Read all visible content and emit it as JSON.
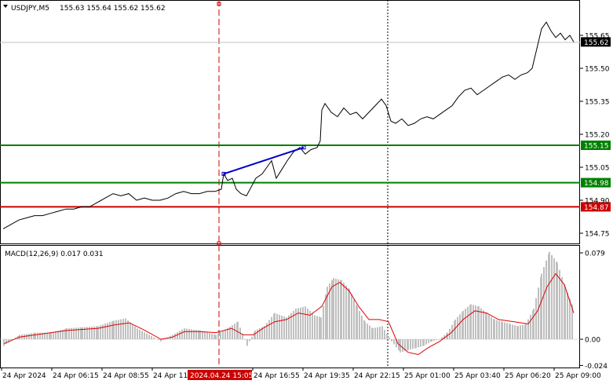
{
  "header": {
    "symbol": "USDJPY,M5",
    "ohlc": "155.63 155.64 155.62 155.62"
  },
  "macd_header": {
    "label": "MACD(12,26,9) 0.017 0.031"
  },
  "colors": {
    "price_line": "#000000",
    "level_green": "#008000",
    "level_red": "#cc0000",
    "trend_blue": "#0000cc",
    "macd_hist": "#c0c0c0",
    "macd_signal": "#dd0000",
    "vline_red": "#cc0000"
  },
  "price_axis": {
    "ticks": [
      "155.65",
      "155.50",
      "155.35",
      "155.20",
      "155.05",
      "154.90",
      "154.75"
    ],
    "current_price": "155.62"
  },
  "levels": [
    {
      "name": "upper-green-level",
      "value": "155.15",
      "color": "#008000"
    },
    {
      "name": "middle-green-level",
      "value": "154.98",
      "color": "#008000"
    },
    {
      "name": "red-level",
      "value": "154.87",
      "color": "#cc0000"
    }
  ],
  "macd_axis": {
    "ticks": [
      "0.079",
      "0.00",
      "-0.024"
    ]
  },
  "time_axis": {
    "labels": [
      "24 Apr 2024",
      "24 Apr 06:15",
      "24 Apr 08:55",
      "24 Apr 11:",
      "24 Apr 16:55",
      "24 Apr 19:35",
      "24 Apr 22:15",
      "25 Apr 01:00",
      "25 Apr 03:40",
      "25 Apr 06:20",
      "25 Apr 09:00"
    ],
    "highlight": "2024.04.24 15:05"
  },
  "chart_data": {
    "type": "line",
    "price_series": [
      {
        "t": 0,
        "v": 154.77
      },
      {
        "t": 10,
        "v": 154.79
      },
      {
        "t": 20,
        "v": 154.81
      },
      {
        "t": 30,
        "v": 154.82
      },
      {
        "t": 40,
        "v": 154.83
      },
      {
        "t": 50,
        "v": 154.83
      },
      {
        "t": 60,
        "v": 154.84
      },
      {
        "t": 70,
        "v": 154.85
      },
      {
        "t": 80,
        "v": 154.86
      },
      {
        "t": 90,
        "v": 154.86
      },
      {
        "t": 100,
        "v": 154.87
      },
      {
        "t": 110,
        "v": 154.87
      },
      {
        "t": 120,
        "v": 154.89
      },
      {
        "t": 130,
        "v": 154.91
      },
      {
        "t": 140,
        "v": 154.93
      },
      {
        "t": 150,
        "v": 154.92
      },
      {
        "t": 160,
        "v": 154.93
      },
      {
        "t": 170,
        "v": 154.9
      },
      {
        "t": 180,
        "v": 154.91
      },
      {
        "t": 190,
        "v": 154.9
      },
      {
        "t": 200,
        "v": 154.9
      },
      {
        "t": 210,
        "v": 154.91
      },
      {
        "t": 220,
        "v": 154.93
      },
      {
        "t": 230,
        "v": 154.94
      },
      {
        "t": 240,
        "v": 154.93
      },
      {
        "t": 250,
        "v": 154.93
      },
      {
        "t": 260,
        "v": 154.94
      },
      {
        "t": 270,
        "v": 154.94
      },
      {
        "t": 278,
        "v": 154.95
      },
      {
        "t": 281,
        "v": 155.02
      },
      {
        "t": 286,
        "v": 154.99
      },
      {
        "t": 292,
        "v": 155.0
      },
      {
        "t": 297,
        "v": 154.95
      },
      {
        "t": 303,
        "v": 154.93
      },
      {
        "t": 310,
        "v": 154.92
      },
      {
        "t": 316,
        "v": 154.96
      },
      {
        "t": 322,
        "v": 155.0
      },
      {
        "t": 330,
        "v": 155.02
      },
      {
        "t": 336,
        "v": 155.05
      },
      {
        "t": 342,
        "v": 155.08
      },
      {
        "t": 348,
        "v": 155.0
      },
      {
        "t": 355,
        "v": 155.04
      },
      {
        "t": 362,
        "v": 155.08
      },
      {
        "t": 370,
        "v": 155.12
      },
      {
        "t": 378,
        "v": 155.14
      },
      {
        "t": 385,
        "v": 155.11
      },
      {
        "t": 392,
        "v": 155.13
      },
      {
        "t": 400,
        "v": 155.14
      },
      {
        "t": 404,
        "v": 155.17
      },
      {
        "t": 406,
        "v": 155.31
      },
      {
        "t": 410,
        "v": 155.34
      },
      {
        "t": 418,
        "v": 155.3
      },
      {
        "t": 426,
        "v": 155.28
      },
      {
        "t": 434,
        "v": 155.32
      },
      {
        "t": 442,
        "v": 155.29
      },
      {
        "t": 450,
        "v": 155.3
      },
      {
        "t": 458,
        "v": 155.27
      },
      {
        "t": 466,
        "v": 155.3
      },
      {
        "t": 474,
        "v": 155.33
      },
      {
        "t": 482,
        "v": 155.36
      },
      {
        "t": 488,
        "v": 155.33
      },
      {
        "t": 494,
        "v": 155.26
      },
      {
        "t": 500,
        "v": 155.25
      },
      {
        "t": 508,
        "v": 155.27
      },
      {
        "t": 516,
        "v": 155.24
      },
      {
        "t": 524,
        "v": 155.25
      },
      {
        "t": 532,
        "v": 155.27
      },
      {
        "t": 540,
        "v": 155.28
      },
      {
        "t": 548,
        "v": 155.27
      },
      {
        "t": 556,
        "v": 155.29
      },
      {
        "t": 564,
        "v": 155.31
      },
      {
        "t": 572,
        "v": 155.33
      },
      {
        "t": 580,
        "v": 155.37
      },
      {
        "t": 588,
        "v": 155.4
      },
      {
        "t": 596,
        "v": 155.41
      },
      {
        "t": 604,
        "v": 155.38
      },
      {
        "t": 612,
        "v": 155.4
      },
      {
        "t": 620,
        "v": 155.42
      },
      {
        "t": 628,
        "v": 155.44
      },
      {
        "t": 636,
        "v": 155.46
      },
      {
        "t": 644,
        "v": 155.47
      },
      {
        "t": 652,
        "v": 155.45
      },
      {
        "t": 660,
        "v": 155.47
      },
      {
        "t": 668,
        "v": 155.48
      },
      {
        "t": 674,
        "v": 155.5
      },
      {
        "t": 680,
        "v": 155.59
      },
      {
        "t": 686,
        "v": 155.68
      },
      {
        "t": 692,
        "v": 155.71
      },
      {
        "t": 698,
        "v": 155.67
      },
      {
        "t": 704,
        "v": 155.64
      },
      {
        "t": 710,
        "v": 155.66
      },
      {
        "t": 716,
        "v": 155.63
      },
      {
        "t": 722,
        "v": 155.65
      },
      {
        "t": 727,
        "v": 155.62
      }
    ],
    "trend_line": [
      {
        "t": 281,
        "v": 155.02
      },
      {
        "t": 383,
        "v": 155.14
      }
    ],
    "macd_hist": [
      {
        "t": 0,
        "v": -0.006
      },
      {
        "t": 20,
        "v": 0.004
      },
      {
        "t": 40,
        "v": 0.006
      },
      {
        "t": 60,
        "v": 0.006
      },
      {
        "t": 80,
        "v": 0.01
      },
      {
        "t": 100,
        "v": 0.011
      },
      {
        "t": 120,
        "v": 0.012
      },
      {
        "t": 140,
        "v": 0.017
      },
      {
        "t": 155,
        "v": 0.019
      },
      {
        "t": 170,
        "v": 0.01
      },
      {
        "t": 185,
        "v": 0.004
      },
      {
        "t": 200,
        "v": -0.002
      },
      {
        "t": 215,
        "v": 0.004
      },
      {
        "t": 230,
        "v": 0.01
      },
      {
        "t": 250,
        "v": 0.008
      },
      {
        "t": 270,
        "v": 0.004
      },
      {
        "t": 285,
        "v": 0.01
      },
      {
        "t": 298,
        "v": 0.016
      },
      {
        "t": 310,
        "v": -0.006
      },
      {
        "t": 320,
        "v": 0.008
      },
      {
        "t": 332,
        "v": 0.012
      },
      {
        "t": 345,
        "v": 0.024
      },
      {
        "t": 360,
        "v": 0.02
      },
      {
        "t": 372,
        "v": 0.028
      },
      {
        "t": 384,
        "v": 0.03
      },
      {
        "t": 396,
        "v": 0.022
      },
      {
        "t": 404,
        "v": 0.02
      },
      {
        "t": 412,
        "v": 0.048
      },
      {
        "t": 420,
        "v": 0.056
      },
      {
        "t": 430,
        "v": 0.054
      },
      {
        "t": 440,
        "v": 0.046
      },
      {
        "t": 450,
        "v": 0.03
      },
      {
        "t": 460,
        "v": 0.016
      },
      {
        "t": 470,
        "v": 0.01
      },
      {
        "t": 482,
        "v": 0.012
      },
      {
        "t": 494,
        "v": -0.002
      },
      {
        "t": 505,
        "v": -0.012
      },
      {
        "t": 515,
        "v": -0.01
      },
      {
        "t": 525,
        "v": -0.008
      },
      {
        "t": 535,
        "v": -0.006
      },
      {
        "t": 545,
        "v": -0.002
      },
      {
        "t": 555,
        "v": 0.0
      },
      {
        "t": 565,
        "v": 0.006
      },
      {
        "t": 575,
        "v": 0.018
      },
      {
        "t": 585,
        "v": 0.026
      },
      {
        "t": 595,
        "v": 0.032
      },
      {
        "t": 605,
        "v": 0.03
      },
      {
        "t": 615,
        "v": 0.024
      },
      {
        "t": 625,
        "v": 0.018
      },
      {
        "t": 635,
        "v": 0.016
      },
      {
        "t": 645,
        "v": 0.014
      },
      {
        "t": 655,
        "v": 0.012
      },
      {
        "t": 665,
        "v": 0.014
      },
      {
        "t": 675,
        "v": 0.028
      },
      {
        "t": 685,
        "v": 0.06
      },
      {
        "t": 695,
        "v": 0.08
      },
      {
        "t": 705,
        "v": 0.07
      },
      {
        "t": 715,
        "v": 0.048
      },
      {
        "t": 725,
        "v": 0.03
      }
    ],
    "macd_signal": [
      {
        "t": 0,
        "v": -0.004
      },
      {
        "t": 20,
        "v": 0.002
      },
      {
        "t": 40,
        "v": 0.004
      },
      {
        "t": 60,
        "v": 0.006
      },
      {
        "t": 80,
        "v": 0.008
      },
      {
        "t": 100,
        "v": 0.009
      },
      {
        "t": 120,
        "v": 0.01
      },
      {
        "t": 140,
        "v": 0.013
      },
      {
        "t": 160,
        "v": 0.015
      },
      {
        "t": 180,
        "v": 0.008
      },
      {
        "t": 200,
        "v": 0.0
      },
      {
        "t": 215,
        "v": 0.002
      },
      {
        "t": 230,
        "v": 0.007
      },
      {
        "t": 250,
        "v": 0.007
      },
      {
        "t": 270,
        "v": 0.006
      },
      {
        "t": 290,
        "v": 0.01
      },
      {
        "t": 305,
        "v": 0.004
      },
      {
        "t": 318,
        "v": 0.004
      },
      {
        "t": 330,
        "v": 0.01
      },
      {
        "t": 345,
        "v": 0.016
      },
      {
        "t": 360,
        "v": 0.018
      },
      {
        "t": 375,
        "v": 0.024
      },
      {
        "t": 390,
        "v": 0.022
      },
      {
        "t": 405,
        "v": 0.03
      },
      {
        "t": 418,
        "v": 0.048
      },
      {
        "t": 428,
        "v": 0.052
      },
      {
        "t": 440,
        "v": 0.044
      },
      {
        "t": 452,
        "v": 0.03
      },
      {
        "t": 465,
        "v": 0.018
      },
      {
        "t": 478,
        "v": 0.018
      },
      {
        "t": 490,
        "v": 0.016
      },
      {
        "t": 502,
        "v": -0.004
      },
      {
        "t": 515,
        "v": -0.012
      },
      {
        "t": 528,
        "v": -0.014
      },
      {
        "t": 540,
        "v": -0.008
      },
      {
        "t": 555,
        "v": -0.002
      },
      {
        "t": 570,
        "v": 0.006
      },
      {
        "t": 585,
        "v": 0.018
      },
      {
        "t": 600,
        "v": 0.026
      },
      {
        "t": 615,
        "v": 0.024
      },
      {
        "t": 630,
        "v": 0.018
      },
      {
        "t": 650,
        "v": 0.016
      },
      {
        "t": 668,
        "v": 0.014
      },
      {
        "t": 680,
        "v": 0.026
      },
      {
        "t": 692,
        "v": 0.048
      },
      {
        "t": 703,
        "v": 0.06
      },
      {
        "t": 714,
        "v": 0.05
      },
      {
        "t": 726,
        "v": 0.024
      }
    ]
  }
}
